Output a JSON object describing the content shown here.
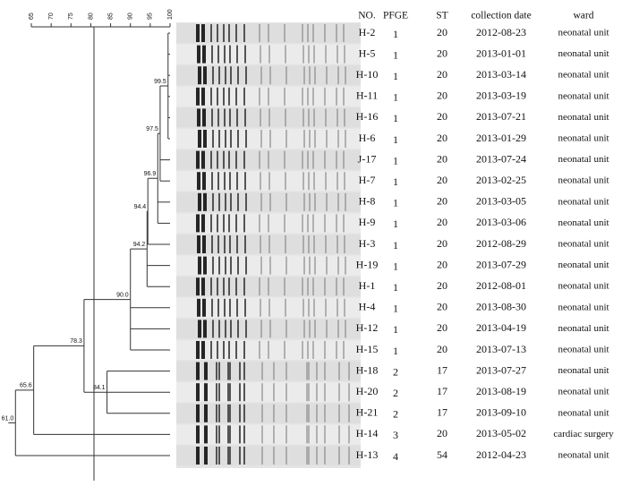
{
  "scale": {
    "ticks": [
      65,
      70,
      75,
      80,
      85,
      90,
      95,
      100
    ]
  },
  "dendrogram": {
    "nodes": [
      "99.5",
      "97.5",
      "96.9",
      "94.4",
      "94.2",
      "90.0",
      "84.1",
      "78.3",
      "65.6",
      "61.0"
    ]
  },
  "table": {
    "header": [
      "NO.",
      "PFGE",
      "ST",
      "collection date",
      "ward"
    ],
    "rows": [
      [
        "H-2",
        "1",
        "20",
        "2012-08-23",
        "neonatal unit"
      ],
      [
        "H-5",
        "1",
        "20",
        "2013-01-01",
        "neonatal unit"
      ],
      [
        "H-10",
        "1",
        "20",
        "2013-03-14",
        "neonatal unit"
      ],
      [
        "H-11",
        "1",
        "20",
        "2013-03-19",
        "neonatal unit"
      ],
      [
        "H-16",
        "1",
        "20",
        "2013-07-21",
        "neonatal unit"
      ],
      [
        "H-6",
        "1",
        "20",
        "2013-01-29",
        "neonatal unit"
      ],
      [
        "J-17",
        "1",
        "20",
        "2013-07-24",
        "neonatal unit"
      ],
      [
        "H-7",
        "1",
        "20",
        "2013-02-25",
        "neonatal unit"
      ],
      [
        "H-8",
        "1",
        "20",
        "2013-03-05",
        "neonatal unit"
      ],
      [
        "H-9",
        "1",
        "20",
        "2013-03-06",
        "neonatal unit"
      ],
      [
        "H-3",
        "1",
        "20",
        "2012-08-29",
        "neonatal unit"
      ],
      [
        "H-19",
        "1",
        "20",
        "2013-07-29",
        "neonatal unit"
      ],
      [
        "H-1",
        "1",
        "20",
        "2012-08-01",
        "neonatal unit"
      ],
      [
        "H-4",
        "1",
        "20",
        "2013-08-30",
        "neonatal unit"
      ],
      [
        "H-12",
        "1",
        "20",
        "2013-04-19",
        "neonatal unit"
      ],
      [
        "H-15",
        "1",
        "20",
        "2013-07-13",
        "neonatal unit"
      ],
      [
        "H-18",
        "2",
        "17",
        "2013-07-27",
        "neonatal unit"
      ],
      [
        "H-20",
        "2",
        "17",
        "2013-08-19",
        "neonatal unit"
      ],
      [
        "H-21",
        "2",
        "17",
        "2013-09-10",
        "neonatal unit"
      ],
      [
        "H-14",
        "3",
        "20",
        "2013-05-02",
        "cardiac surgery"
      ],
      [
        "H-13",
        "4",
        "54",
        "2012-04-23",
        "neonatal unit"
      ]
    ]
  }
}
